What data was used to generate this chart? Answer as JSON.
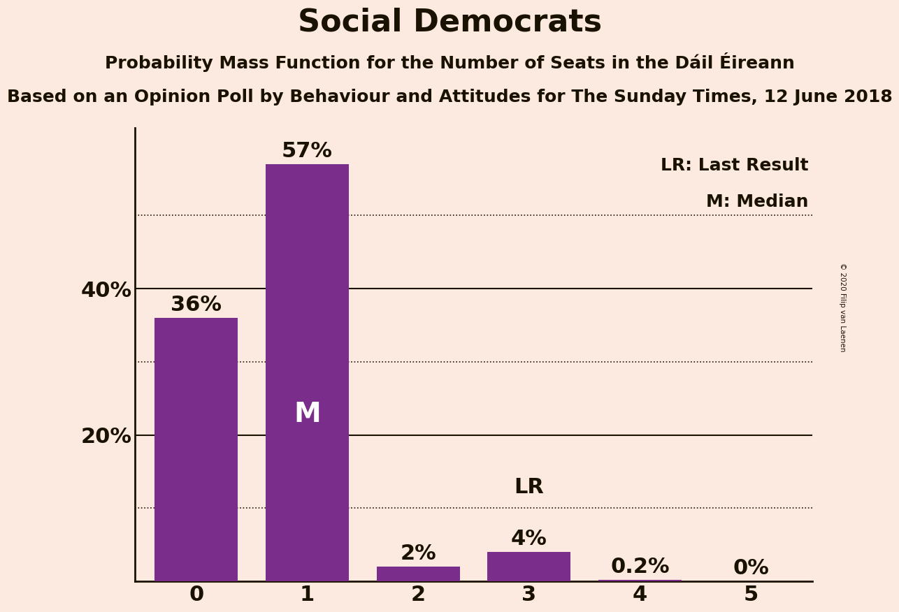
{
  "title": "Social Democrats",
  "subtitle": "Probability Mass Function for the Number of Seats in the Dáil Éireann",
  "subsubtitle": "Based on an Opinion Poll by Behaviour and Attitudes for The Sunday Times, 12 June 2018",
  "copyright": "© 2020 Filip van Laenen",
  "categories": [
    0,
    1,
    2,
    3,
    4,
    5
  ],
  "values": [
    0.36,
    0.57,
    0.02,
    0.04,
    0.002,
    0.0
  ],
  "bar_color": "#7b2d8b",
  "background_color": "#fceae0",
  "text_color": "#1a1200",
  "label_texts": [
    "36%",
    "57%",
    "2%",
    "4%",
    "0.2%",
    "0%"
  ],
  "median_bar_idx": 1,
  "last_result_bar_idx": 3,
  "solid_gridlines": [
    0.2,
    0.4
  ],
  "dotted_gridlines": [
    0.1,
    0.3,
    0.5
  ],
  "ytick_labels": [
    "20%",
    "40%"
  ],
  "ytick_values": [
    0.2,
    0.4
  ],
  "ylim": [
    0,
    0.62
  ],
  "lr_label": "LR",
  "median_label": "M",
  "legend_lr": "LR: Last Result",
  "legend_m": "M: Median",
  "title_fontsize": 32,
  "subtitle_fontsize": 18,
  "subsubtitle_fontsize": 18,
  "bar_label_fontsize": 22,
  "axis_label_fontsize": 22,
  "bar_inner_label_fontsize": 28,
  "legend_fontsize": 18,
  "bar_width": 0.75
}
